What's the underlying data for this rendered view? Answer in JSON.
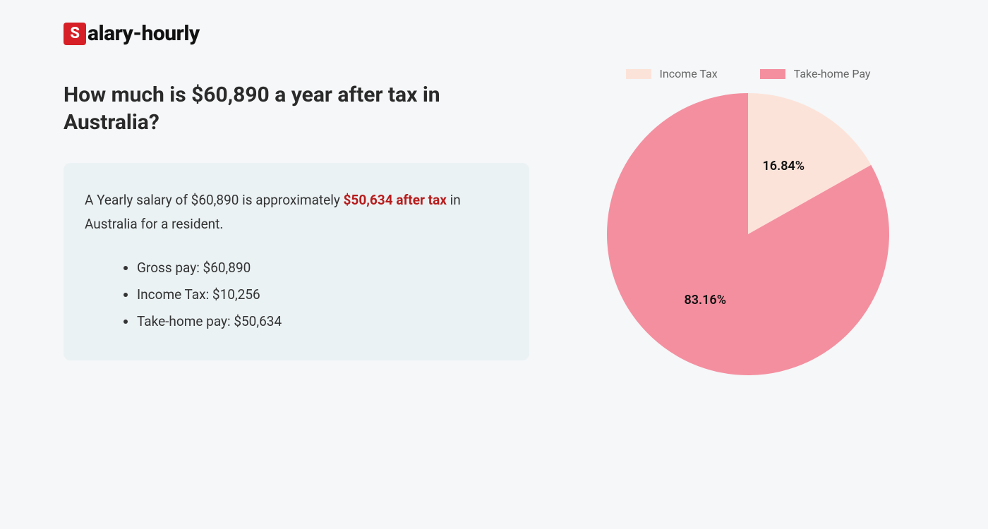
{
  "logo": {
    "badge_letter": "S",
    "rest": "alary-hourly",
    "badge_bg": "#d61f26",
    "badge_fg": "#ffffff"
  },
  "heading": "How much is $60,890 a year after tax in Australia?",
  "summary": {
    "prefix": "A Yearly salary of $60,890 is approximately ",
    "highlight": "$50,634 after tax",
    "suffix": " in Australia for a resident.",
    "highlight_color": "#b71c1c",
    "box_bg": "#ebf2f4",
    "items": [
      "Gross pay: $60,890",
      "Income Tax: $10,256",
      "Take-home pay: $50,634"
    ]
  },
  "chart": {
    "type": "pie",
    "radius": 200,
    "background_color": "#f5f7f8",
    "slices": [
      {
        "label": "Income Tax",
        "value": 16.84,
        "display": "16.84%",
        "color": "#fce3d9"
      },
      {
        "label": "Take-home Pay",
        "value": 83.16,
        "display": "83.16%",
        "color": "#f48fa0"
      }
    ],
    "legend_text_color": "#666666",
    "label_fontsize": 18,
    "label_color": "#111111",
    "start_angle_deg": -90
  },
  "page_bg": "#f5f7f8"
}
